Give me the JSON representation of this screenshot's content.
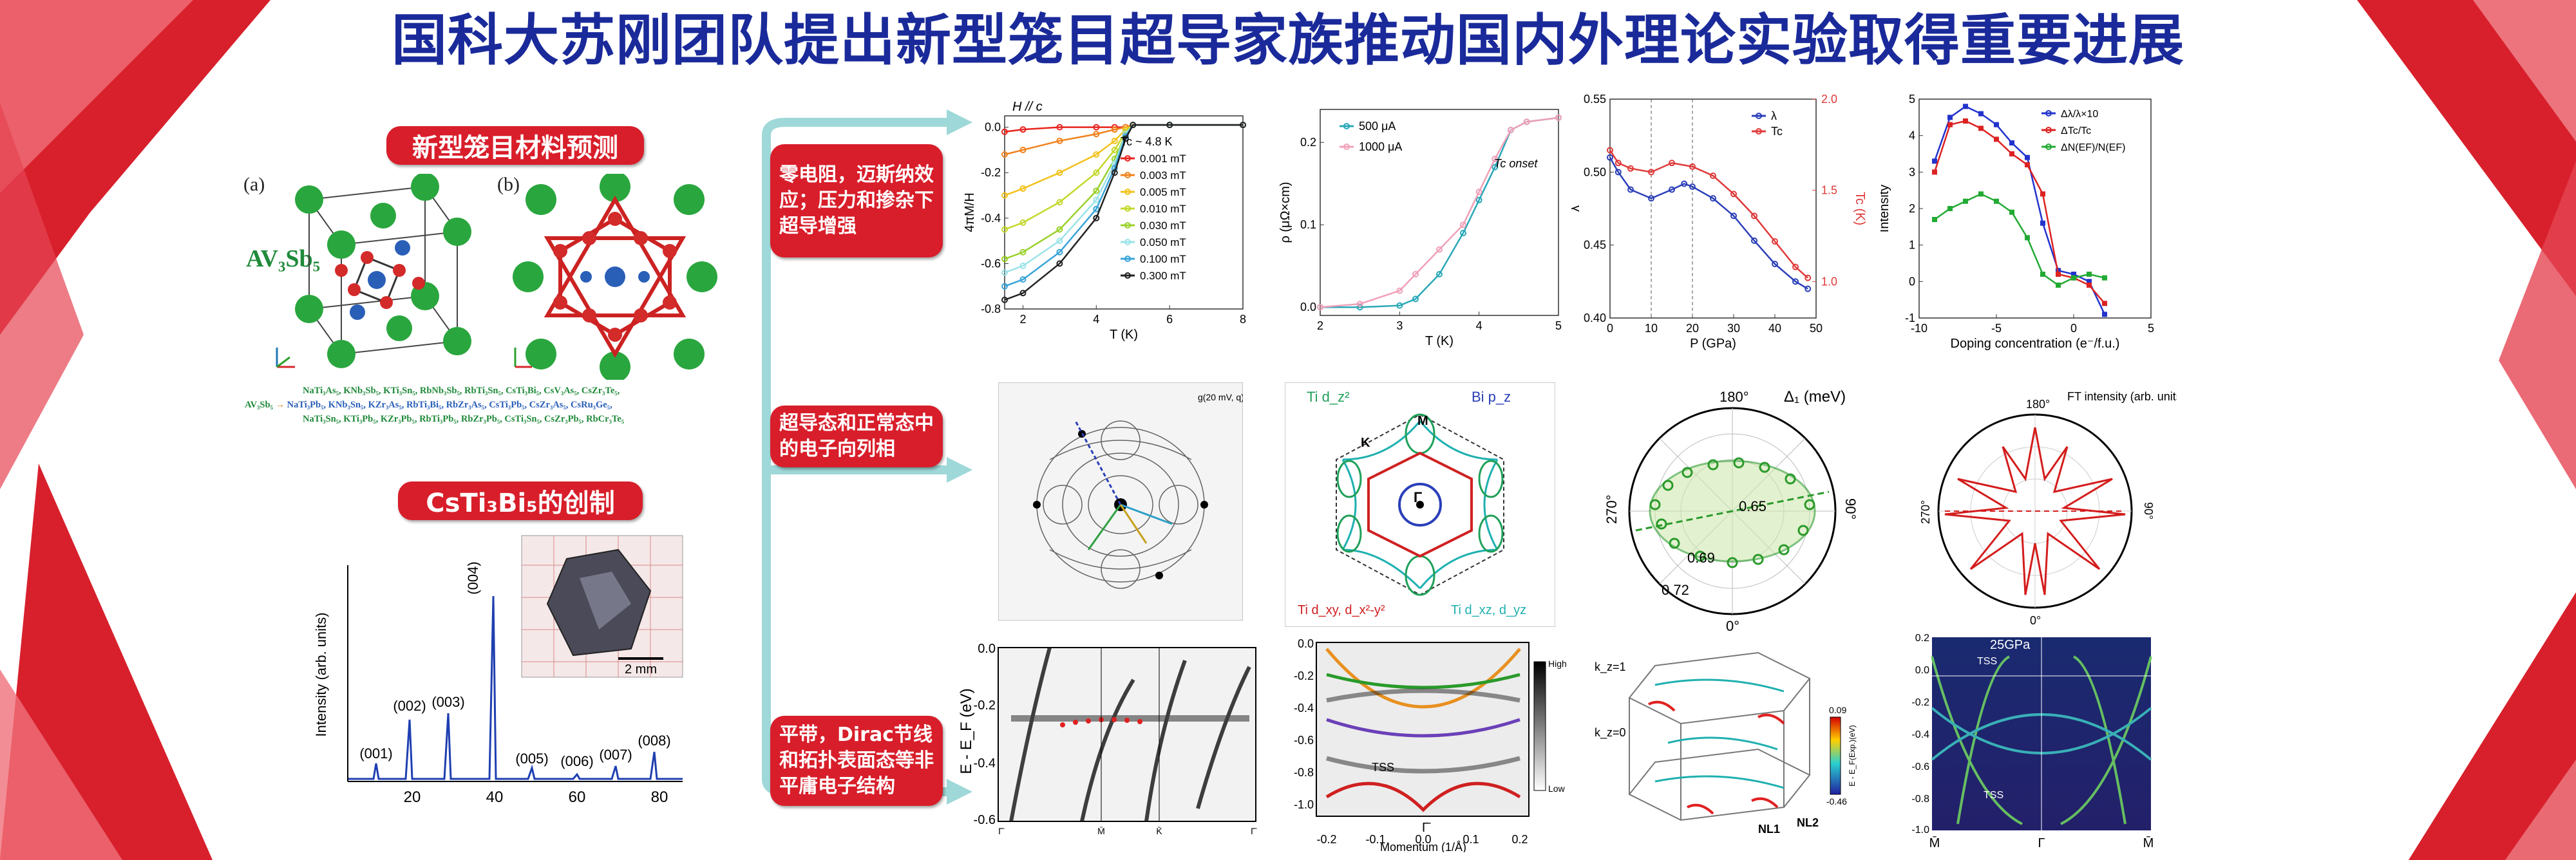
{
  "title": "国科大苏刚团队提出新型笼目超导家族推动国内外理论实验取得重要进展",
  "left": {
    "prediction_label": "新型笼目材料预测",
    "panel_a": "(a)",
    "panel_b": "(b)",
    "formula": "AV₃Sb₅",
    "material_rows": [
      "NaTi₃As₅, KNb₃Sb₅, KTi₃Sn₅, RbNb₃Sb₅, RbTi₃Sn₅, CsTi₃Bi₅, CsV₃As₅, CsZr₃Te₅,",
      "NaTi₃Pb₅, KNb₃Sn₅, KZr₃As₅, RbTi₃Bi₅, RbZr₃As₅, CsTi₃Pb₅, CsZr₃As₅, CsRu₃Ge₅,",
      "NaTi₃Sn₅, KTi₃Pb₅, KZr₃Pb₅, RbTi₃Pb₅, RbZr₃Pb₅, CsTi₃Sn₅, CsZr₃Pb₅, RbCr₃Te₅"
    ],
    "av3sb5_arrow": "AV₃Sb₅",
    "creation_label": "CsTi₃Bi₅的创制",
    "xrd_ylabel": "Intensity (arb. units)",
    "xrd_peaks": [
      "(001)",
      "(002)",
      "(003)",
      "(004)",
      "(005)",
      "(006)",
      "(007)",
      "(008)"
    ],
    "xrd_xticks": [
      "20",
      "40",
      "60",
      "80"
    ],
    "scale_bar": "2 mm"
  },
  "row_labels": [
    "零电阻，迈斯纳效应；压力和掺杂下超导增强",
    "超导态和正常态中的电子向列相",
    "平带，Dirac节线和拓扑表面态等非平庸电子结构"
  ],
  "chart_data": [
    {
      "type": "line",
      "title": "H // c",
      "xlabel": "T (K)",
      "ylabel": "4πM/H",
      "annotation": "Tc ~ 4.8 K",
      "xlim": [
        1.5,
        8
      ],
      "ylim": [
        -0.8,
        0.05
      ],
      "xticks": [
        "2",
        "4",
        "6",
        "8"
      ],
      "yticks": [
        "0.0",
        "-0.2",
        "-0.4",
        "-0.6",
        "-0.8"
      ],
      "series": [
        {
          "name": "0.001 mT",
          "color": "#e8231d",
          "x": [
            1.5,
            2,
            3,
            4,
            4.5,
            4.8,
            5,
            6,
            8
          ],
          "y": [
            -0.02,
            -0.01,
            0,
            0,
            0,
            0,
            0.01,
            0.01,
            0.01
          ]
        },
        {
          "name": "0.003 mT",
          "color": "#f2821c",
          "x": [
            1.5,
            2,
            3,
            4,
            4.5,
            4.8,
            5,
            6,
            8
          ],
          "y": [
            -0.12,
            -0.1,
            -0.06,
            -0.03,
            -0.01,
            0,
            0.01,
            0.01,
            0.01
          ]
        },
        {
          "name": "0.005 mT",
          "color": "#f2c21c",
          "x": [
            1.5,
            2,
            3,
            4,
            4.5,
            4.8,
            5,
            6,
            8
          ],
          "y": [
            -0.3,
            -0.27,
            -0.2,
            -0.12,
            -0.06,
            -0.01,
            0.01,
            0.01,
            0.01
          ]
        },
        {
          "name": "0.010 mT",
          "color": "#c4d82a",
          "x": [
            1.5,
            2,
            3,
            4,
            4.5,
            4.8,
            5,
            6,
            8
          ],
          "y": [
            -0.45,
            -0.42,
            -0.33,
            -0.2,
            -0.1,
            -0.02,
            0.01,
            0.01,
            0.01
          ]
        },
        {
          "name": "0.030 mT",
          "color": "#9ad12b",
          "x": [
            1.5,
            2,
            3,
            4,
            4.5,
            4.8,
            5,
            6,
            8
          ],
          "y": [
            -0.58,
            -0.55,
            -0.45,
            -0.28,
            -0.14,
            -0.03,
            0.01,
            0.01,
            0.01
          ]
        },
        {
          "name": "0.050 mT",
          "color": "#9be3e8",
          "x": [
            1.5,
            2,
            3,
            4,
            4.5,
            4.8,
            5,
            6,
            8
          ],
          "y": [
            -0.64,
            -0.61,
            -0.5,
            -0.32,
            -0.16,
            -0.03,
            0.01,
            0.01,
            0.01
          ]
        },
        {
          "name": "0.100 mT",
          "color": "#3aa3d8",
          "x": [
            1.5,
            2,
            3,
            4,
            4.5,
            4.8,
            5,
            6,
            8
          ],
          "y": [
            -0.7,
            -0.67,
            -0.55,
            -0.36,
            -0.18,
            -0.04,
            0.01,
            0.01,
            0.01
          ]
        },
        {
          "name": "0.300 mT",
          "color": "#222222",
          "x": [
            1.5,
            2,
            3,
            4,
            4.5,
            4.8,
            5,
            6,
            8
          ],
          "y": [
            -0.76,
            -0.73,
            -0.6,
            -0.4,
            -0.2,
            -0.05,
            0.01,
            0.01,
            0.01
          ]
        }
      ]
    },
    {
      "type": "line",
      "xlabel": "T (K)",
      "ylabel": "ρ (μΩ×cm)",
      "annotation": "Tc onset",
      "xlim": [
        2,
        5
      ],
      "ylim": [
        -0.01,
        0.24
      ],
      "xticks": [
        "2",
        "3",
        "4",
        "5"
      ],
      "yticks": [
        "0.0",
        "0.1",
        "0.2"
      ],
      "series": [
        {
          "name": "500 μA",
          "color": "#2aa8b8",
          "x": [
            2,
            2.5,
            3,
            3.2,
            3.5,
            3.8,
            4,
            4.2,
            4.4,
            4.6,
            5
          ],
          "y": [
            0,
            0,
            0.002,
            0.01,
            0.04,
            0.09,
            0.13,
            0.17,
            0.215,
            0.225,
            0.23
          ]
        },
        {
          "name": "1000 μA",
          "color": "#f0a0b8",
          "x": [
            2,
            2.5,
            3,
            3.2,
            3.5,
            3.8,
            4,
            4.2,
            4.4,
            4.6,
            5
          ],
          "y": [
            0,
            0.004,
            0.02,
            0.04,
            0.07,
            0.1,
            0.14,
            0.18,
            0.215,
            0.225,
            0.23
          ]
        }
      ]
    },
    {
      "type": "line",
      "xlabel": "P (GPa)",
      "ylabel": "λ",
      "ylabel_right": "Tc (K)",
      "xlim": [
        0,
        50
      ],
      "ylim": [
        0.4,
        0.55
      ],
      "xticks": [
        "0",
        "10",
        "20",
        "30",
        "40",
        "50"
      ],
      "yticks": [
        "0.40",
        "0.45",
        "0.50",
        "0.55"
      ],
      "yticks_right": [
        "1.0",
        "1.5",
        "2.0"
      ],
      "series": [
        {
          "name": "λ",
          "color": "#2b3fb8",
          "x": [
            0,
            2,
            5,
            10,
            15,
            18,
            20,
            25,
            30,
            35,
            40,
            45,
            48
          ],
          "y": [
            0.51,
            0.5,
            0.488,
            0.482,
            0.488,
            0.492,
            0.49,
            0.482,
            0.47,
            0.453,
            0.437,
            0.425,
            0.42
          ]
        },
        {
          "name": "Tc",
          "color": "#e03a3a",
          "x": [
            0,
            2,
            5,
            10,
            15,
            20,
            25,
            30,
            35,
            40,
            45,
            48
          ],
          "y": [
            1.72,
            1.65,
            1.62,
            1.6,
            1.65,
            1.63,
            1.58,
            1.48,
            1.36,
            1.22,
            1.08,
            1.02
          ]
        }
      ]
    },
    {
      "type": "line",
      "xlabel": "Doping concentration (e⁻/f.u.)",
      "ylabel": "Intensity",
      "xlim": [
        -10,
        5
      ],
      "ylim": [
        -1,
        5
      ],
      "xticks": [
        "-10",
        "-5",
        "0",
        "5"
      ],
      "yticks": [
        "-1",
        "0",
        "1",
        "2",
        "3",
        "4",
        "5"
      ],
      "series": [
        {
          "name": "Δλ/λ×10",
          "color": "#2233cc",
          "x": [
            -9,
            -8,
            -7,
            -6,
            -5,
            -4,
            -3,
            -2,
            -1,
            0,
            1,
            2
          ],
          "y": [
            3.3,
            4.5,
            4.8,
            4.6,
            4.3,
            3.8,
            3.4,
            1.6,
            0.3,
            0.2,
            0,
            -0.9
          ]
        },
        {
          "name": "ΔTc/Tc",
          "color": "#dd2222",
          "x": [
            -9,
            -8,
            -7,
            -6,
            -5,
            -4,
            -3,
            -2,
            -1,
            0,
            1,
            2
          ],
          "y": [
            3.0,
            4.3,
            4.4,
            4.2,
            3.9,
            3.5,
            3.2,
            2.4,
            0.2,
            0.1,
            -0.1,
            -0.6
          ]
        },
        {
          "name": "ΔN(EF)/N(EF)",
          "color": "#22aa33",
          "x": [
            -9,
            -8,
            -7,
            -6,
            -5,
            -4,
            -3,
            -2,
            -1,
            0,
            1,
            2
          ],
          "y": [
            1.7,
            2.0,
            2.2,
            2.4,
            2.2,
            1.9,
            1.2,
            0.2,
            -0.1,
            0.1,
            0.2,
            0.1
          ]
        }
      ]
    }
  ],
  "row2": {
    "stm_title": "g(20 mV, q)",
    "fs_labels": {
      "ti_dz2": "Ti d_z²",
      "bi_pz": "Bi p_z",
      "M": "M",
      "K": "K",
      "Gamma": "Γ",
      "ti_dxy": "Ti d_xy, d_x²-y²",
      "ti_dxz": "Ti d_xz, d_yz"
    },
    "polar1_title": "Δ₁ (meV)",
    "polar1_ticks": [
      "180°",
      "270°",
      "90°",
      "0°",
      "0.65",
      "0.69",
      "0.72"
    ],
    "polar2_title": "FT intensity (arb. units)",
    "polar2_ticks": [
      "180°",
      "270°",
      "90°",
      "0°"
    ]
  },
  "row3": {
    "arpes1_ylabel": "E - E_F (eV)",
    "arpes1_yticks": [
      "0.0",
      "-0.2",
      "-0.4",
      "-0.6"
    ],
    "arpes1_xticks": [
      "Γ̄",
      "M̄",
      "K̄",
      "Γ̄"
    ],
    "arpes2_xlabel": "Momentum (1/Å)",
    "arpes2_yticks": [
      "0.0",
      "-0.2",
      "-0.4",
      "-0.6",
      "-0.8",
      "-1.0"
    ],
    "arpes2_xticks": [
      "-0.2",
      "-0.1",
      "0.0",
      "0.1",
      "0.2"
    ],
    "arpes2_labels": {
      "tss": "TSS",
      "gamma": "Γ̄",
      "high": "High",
      "low": "Low"
    },
    "bz_labels": {
      "kz1": "k_z=1",
      "kz0": "k_z=0",
      "nl1": "NL1",
      "nl2": "NL2",
      "cmax": "0.09",
      "cmin": "-0.46",
      "cbar": "E - E_F(Exp.)(eV)"
    },
    "band_labels": {
      "pressure": "25GPa",
      "tss1": "TSS",
      "tss2": "TSS",
      "M1": "M̄",
      "G": "Γ",
      "M2": "M̄"
    },
    "band_yticks": [
      "0.2",
      "0.0",
      "-0.2",
      "-0.4",
      "-0.6",
      "-0.8",
      "-1.0"
    ]
  }
}
